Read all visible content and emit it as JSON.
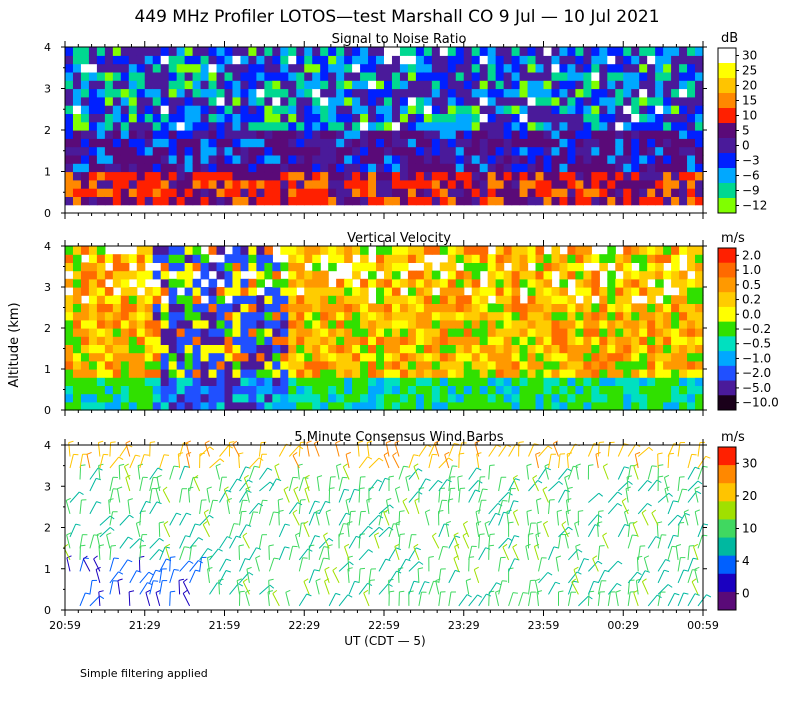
{
  "title": "449 MHz Profiler LOTOS—test Marshall CO  9 Jul — 10 Jul 2021",
  "shared_y_label": "Altitude (km)",
  "x_axis": {
    "label": "UT  (CDT — 5)",
    "ticks": [
      "20:59",
      "21:29",
      "21:59",
      "22:29",
      "22:59",
      "23:29",
      "23:59",
      "00:29",
      "00:59"
    ],
    "range_minutes": [
      0,
      240
    ]
  },
  "footnote": "Simple filtering applied",
  "chart_data": [
    {
      "type": "heatmap",
      "title": "Signal to Noise Ratio",
      "ylabel": "Altitude (km)",
      "ylim": [
        0,
        4
      ],
      "y_ticks": [
        0,
        1,
        2,
        3,
        4
      ],
      "colorbar": {
        "unit": "dB",
        "labels": [
          "30",
          "25",
          "20",
          "15",
          "10",
          "5",
          "0",
          "−3",
          "−6",
          "−9",
          "−12"
        ],
        "colors": [
          "#ffffff",
          "#ffff00",
          "#ffc400",
          "#ff8800",
          "#ff2000",
          "#5a0a78",
          "#4a1a9a",
          "#0020ff",
          "#00a8ff",
          "#00d890",
          "#80ff00"
        ]
      }
    },
    {
      "type": "heatmap",
      "title": "Vertical Velocity",
      "ylabel": "Altitude (km)",
      "ylim": [
        0,
        4
      ],
      "y_ticks": [
        0,
        1,
        2,
        3,
        4
      ],
      "colorbar": {
        "unit": "m/s",
        "labels": [
          "2.0",
          "1.0",
          "0.5",
          "0.2",
          "0.0",
          "−0.2",
          "−0.5",
          "−1.0",
          "−2.0",
          "−5.0",
          "−10.0"
        ],
        "colors": [
          "#ff2000",
          "#ff6a00",
          "#ff9900",
          "#ffcc00",
          "#ffff00",
          "#30e000",
          "#00e0c0",
          "#00a8ff",
          "#2050ff",
          "#4a1a9a",
          "#1a001a"
        ]
      }
    },
    {
      "type": "scatter",
      "title": "5 Minute Consensus Wind Barbs",
      "ylabel": "Altitude (km)",
      "ylim": [
        0,
        4
      ],
      "y_ticks": [
        0,
        1,
        2,
        3,
        4
      ],
      "colorbar": {
        "unit": "m/s",
        "labels": [
          "30",
          "20",
          "10",
          "4",
          "0"
        ],
        "colors": [
          "#ff2000",
          "#ff8800",
          "#ffc400",
          "#a0e000",
          "#40d860",
          "#00b8a0",
          "#0060ff",
          "#1a00c0",
          "#5a0a78"
        ]
      }
    }
  ]
}
